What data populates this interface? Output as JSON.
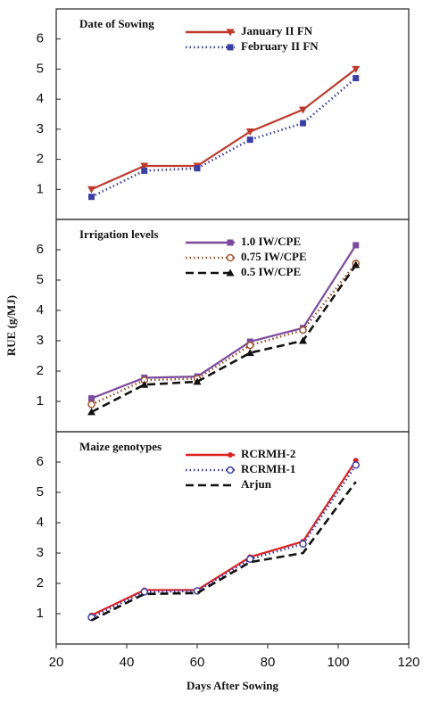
{
  "chart_data": [
    {
      "type": "line",
      "title": "Date of Sowing",
      "legend": "upper right",
      "x": [
        30,
        45,
        60,
        75,
        90,
        105
      ],
      "xlim": [
        20,
        120
      ],
      "ylim": [
        0,
        7
      ],
      "yticks": [
        1,
        2,
        3,
        4,
        5,
        6
      ],
      "series": [
        {
          "name": "January II FN",
          "color": "#c0392b",
          "style": "solid",
          "marker": "triangle-down",
          "values": [
            1.0,
            1.78,
            1.78,
            2.92,
            3.65,
            5.0
          ]
        },
        {
          "name": "February II FN",
          "color": "#3b3fa8",
          "style": "dotted",
          "marker": "square",
          "values": [
            0.75,
            1.62,
            1.7,
            2.65,
            3.2,
            4.7
          ]
        }
      ]
    },
    {
      "type": "line",
      "title": "Irrigation levels",
      "legend": "upper right",
      "ylabel": "RUE (g/MJ)",
      "x": [
        30,
        45,
        60,
        75,
        90,
        105
      ],
      "xlim": [
        20,
        120
      ],
      "ylim": [
        0,
        7
      ],
      "yticks": [
        1,
        2,
        3,
        4,
        5,
        6
      ],
      "series": [
        {
          "name": "1.0 IW/CPE",
          "color": "#7b4a9e",
          "style": "solid",
          "marker": "square",
          "values": [
            1.1,
            1.78,
            1.82,
            2.97,
            3.42,
            6.15
          ]
        },
        {
          "name": "0.75 IW/CPE",
          "color": "#a0522d",
          "style": "dotted",
          "marker": "circle-open",
          "values": [
            0.9,
            1.7,
            1.75,
            2.85,
            3.35,
            5.55
          ]
        },
        {
          "name": "0.5 IW/CPE",
          "color": "#111111",
          "style": "dashed",
          "marker": "triangle",
          "values": [
            0.65,
            1.55,
            1.65,
            2.6,
            3.0,
            5.5
          ]
        }
      ]
    },
    {
      "type": "line",
      "title": "Maize genotypes",
      "legend": "upper right",
      "xlabel": "Days After Sowing",
      "x": [
        30,
        45,
        60,
        75,
        90,
        105
      ],
      "xlim": [
        20,
        120
      ],
      "xticks": [
        20,
        40,
        60,
        80,
        100,
        120
      ],
      "ylim": [
        0,
        7
      ],
      "yticks": [
        1,
        2,
        3,
        4,
        5,
        6
      ],
      "series": [
        {
          "name": "RCRMH-2",
          "color": "#e02020",
          "style": "solid",
          "marker": "circle",
          "values": [
            0.95,
            1.78,
            1.78,
            2.87,
            3.38,
            6.05
          ]
        },
        {
          "name": "RCRMH-1",
          "color": "#3b3fa8",
          "style": "dotted",
          "marker": "circle-open",
          "values": [
            0.88,
            1.72,
            1.75,
            2.8,
            3.3,
            5.9
          ]
        },
        {
          "name": "Arjun",
          "color": "#111111",
          "style": "dashed",
          "marker": "none",
          "values": [
            0.78,
            1.65,
            1.68,
            2.7,
            3.0,
            5.35
          ]
        }
      ]
    }
  ]
}
